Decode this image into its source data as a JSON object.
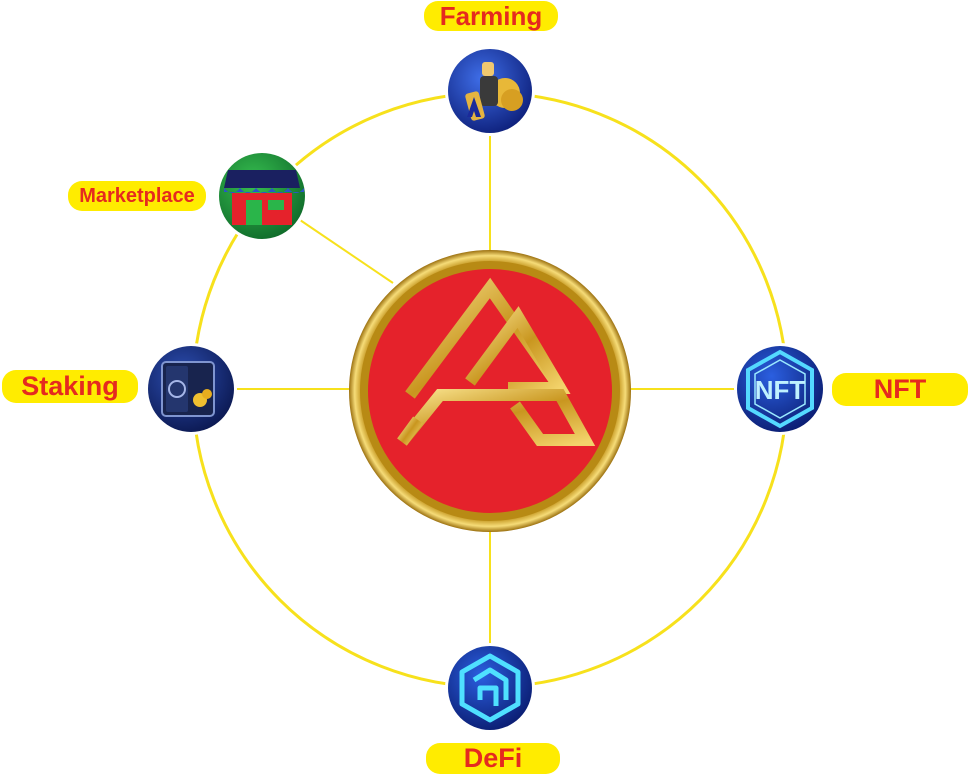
{
  "nodes": {
    "farming": {
      "label": "Farming",
      "icon": "farmer-coins-icon"
    },
    "marketplace": {
      "label": "Marketplace",
      "icon": "shop-storefront-icon"
    },
    "staking": {
      "label": "Staking",
      "icon": "vault-safe-icon"
    },
    "nft": {
      "label": "NFT",
      "icon": "nft-hexagon-icon",
      "badge_text": "NFT"
    },
    "defi": {
      "label": "DeFi",
      "icon": "defi-cube-icon"
    }
  },
  "center": {
    "logo": "a-brand-logo-coin"
  },
  "colors": {
    "ring": "#f7e11c",
    "pill_fill": "#ffec00",
    "label_text": "#e52a1f",
    "coin_red": "#e5222b",
    "coin_gold": "#c99a1e",
    "icon_blue": "#1b3fb8"
  }
}
